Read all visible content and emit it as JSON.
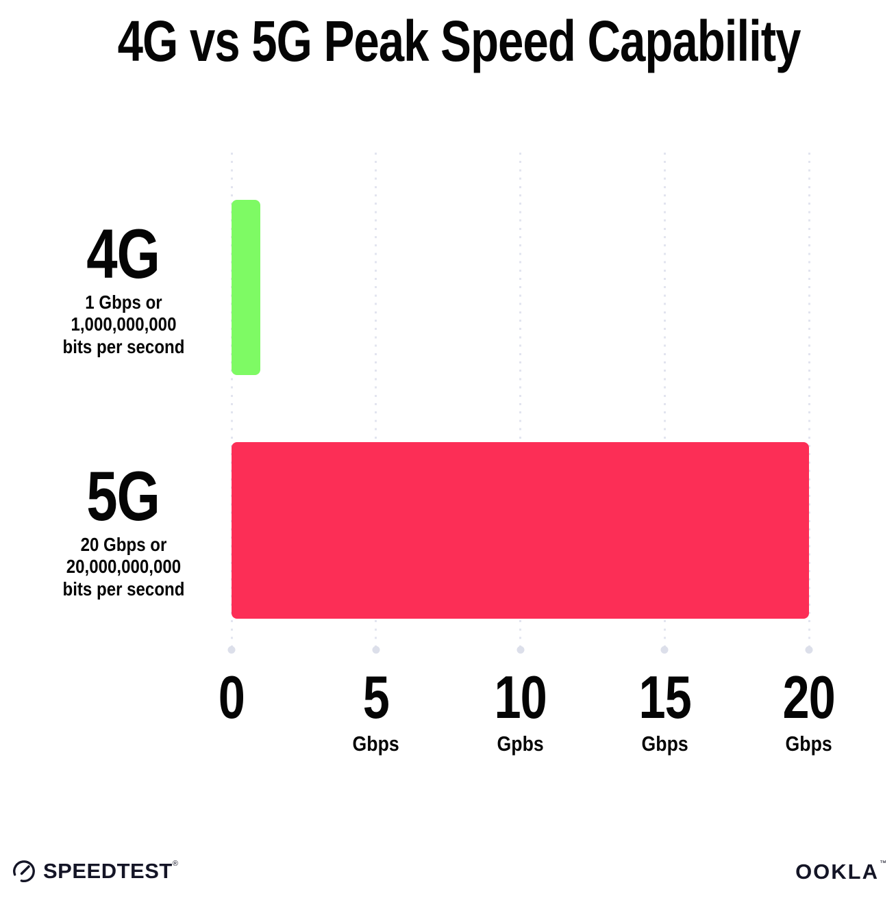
{
  "title": "4G vs 5G Peak Speed Capability",
  "chart_data": {
    "type": "bar",
    "orientation": "horizontal",
    "title": "4G vs 5G Peak Speed Capability",
    "categories": [
      "4G",
      "5G"
    ],
    "values": [
      1,
      20
    ],
    "xlim": [
      0,
      20
    ],
    "grid": "dotted-vertical-gridlines",
    "legend": "none",
    "rows": [
      {
        "name": "4G",
        "sub_lines": [
          "1 Gbps or",
          "1,000,000,000",
          "bits per second"
        ],
        "value": 1,
        "color": "#7EFA64"
      },
      {
        "name": "5G",
        "sub_lines": [
          "20 Gbps or",
          "20,000,000,000",
          "bits per second"
        ],
        "value": 20,
        "color": "#FC2E56"
      }
    ],
    "x_ticks": [
      {
        "label": "0",
        "unit": ""
      },
      {
        "label": "5",
        "unit": "Gbps"
      },
      {
        "label": "10",
        "unit": "Gpbs"
      },
      {
        "label": "15",
        "unit": "Gbps"
      },
      {
        "label": "20",
        "unit": "Gbps"
      }
    ]
  },
  "colors": {
    "bar_4g": "#7EFA64",
    "bar_5g": "#FC2E56",
    "grid_dot": "#E2E4EF",
    "grid_end_dot": "#DCDFEA",
    "text": "#050505",
    "logo": "#141526"
  },
  "footer": {
    "speedtest_label": "SPEEDTEST",
    "speedtest_mark": "®",
    "ookla_label": "OOKLA",
    "ookla_mark": "™"
  }
}
